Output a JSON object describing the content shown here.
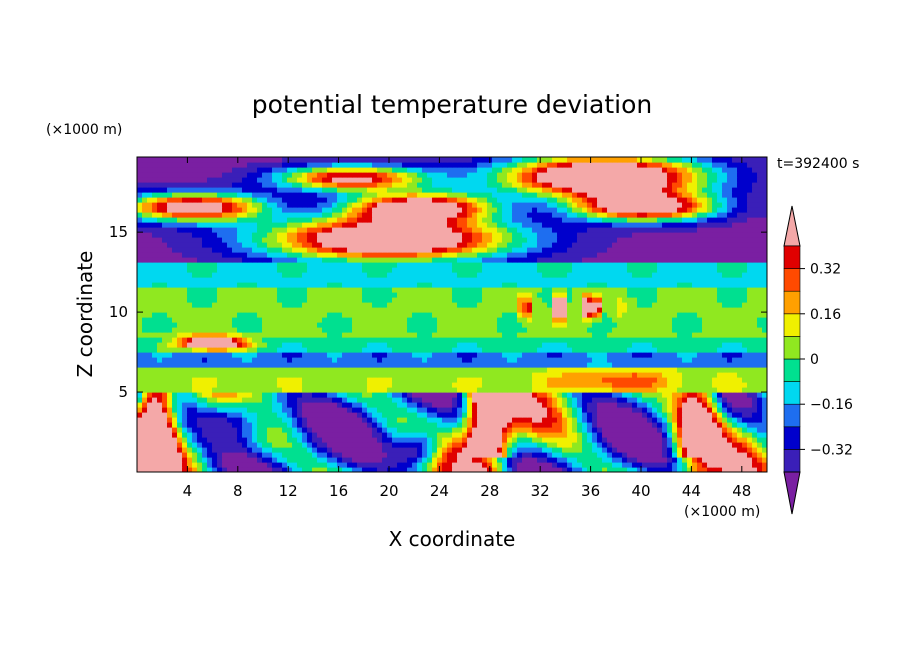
{
  "chart_data": {
    "type": "heatmap",
    "title": "potential temperature deviation",
    "xlabel": "X coordinate",
    "ylabel": "Z coordinate",
    "x_unit": "(×1000 m)",
    "y_unit": "(×1000 m)",
    "time_label": "t=392400 s",
    "xlim": [
      0,
      50
    ],
    "ylim": [
      0,
      19.7
    ],
    "x_ticks": [
      4,
      8,
      12,
      16,
      20,
      24,
      28,
      32,
      36,
      40,
      44,
      48
    ],
    "y_ticks": [
      5,
      10,
      15
    ],
    "colorbar": {
      "levels": [
        -0.4,
        -0.32,
        -0.24,
        -0.16,
        -0.08,
        0,
        0.08,
        0.16,
        0.24,
        0.32,
        0.4
      ],
      "tick_labels": [
        "0.32",
        "0.16",
        "0",
        "−0.16",
        "−0.32"
      ],
      "tick_values": [
        0.32,
        0.16,
        0,
        -0.16,
        -0.32
      ],
      "colors": [
        "#7a1fa2",
        "#3a1fb8",
        "#0000cc",
        "#1e6ef0",
        "#00d8f0",
        "#00e090",
        "#90e820",
        "#f0f000",
        "#ffa000",
        "#ff4a00",
        "#e00000",
        "#f4a8a8"
      ]
    },
    "bands": [
      {
        "z": [
          13.0,
          19.7
        ],
        "value": -0.4
      },
      {
        "z": [
          11.5,
          13.0
        ],
        "value": -0.1
      },
      {
        "z": [
          8.5,
          11.5
        ],
        "value": 0.02
      },
      {
        "z": [
          7.5,
          8.5
        ],
        "value": -0.06
      },
      {
        "z": [
          6.5,
          7.5
        ],
        "value": -0.2
      },
      {
        "z": [
          5.0,
          6.5
        ],
        "value": 0.05
      },
      {
        "z": [
          0.0,
          5.0
        ],
        "value": -0.42
      }
    ]
  }
}
